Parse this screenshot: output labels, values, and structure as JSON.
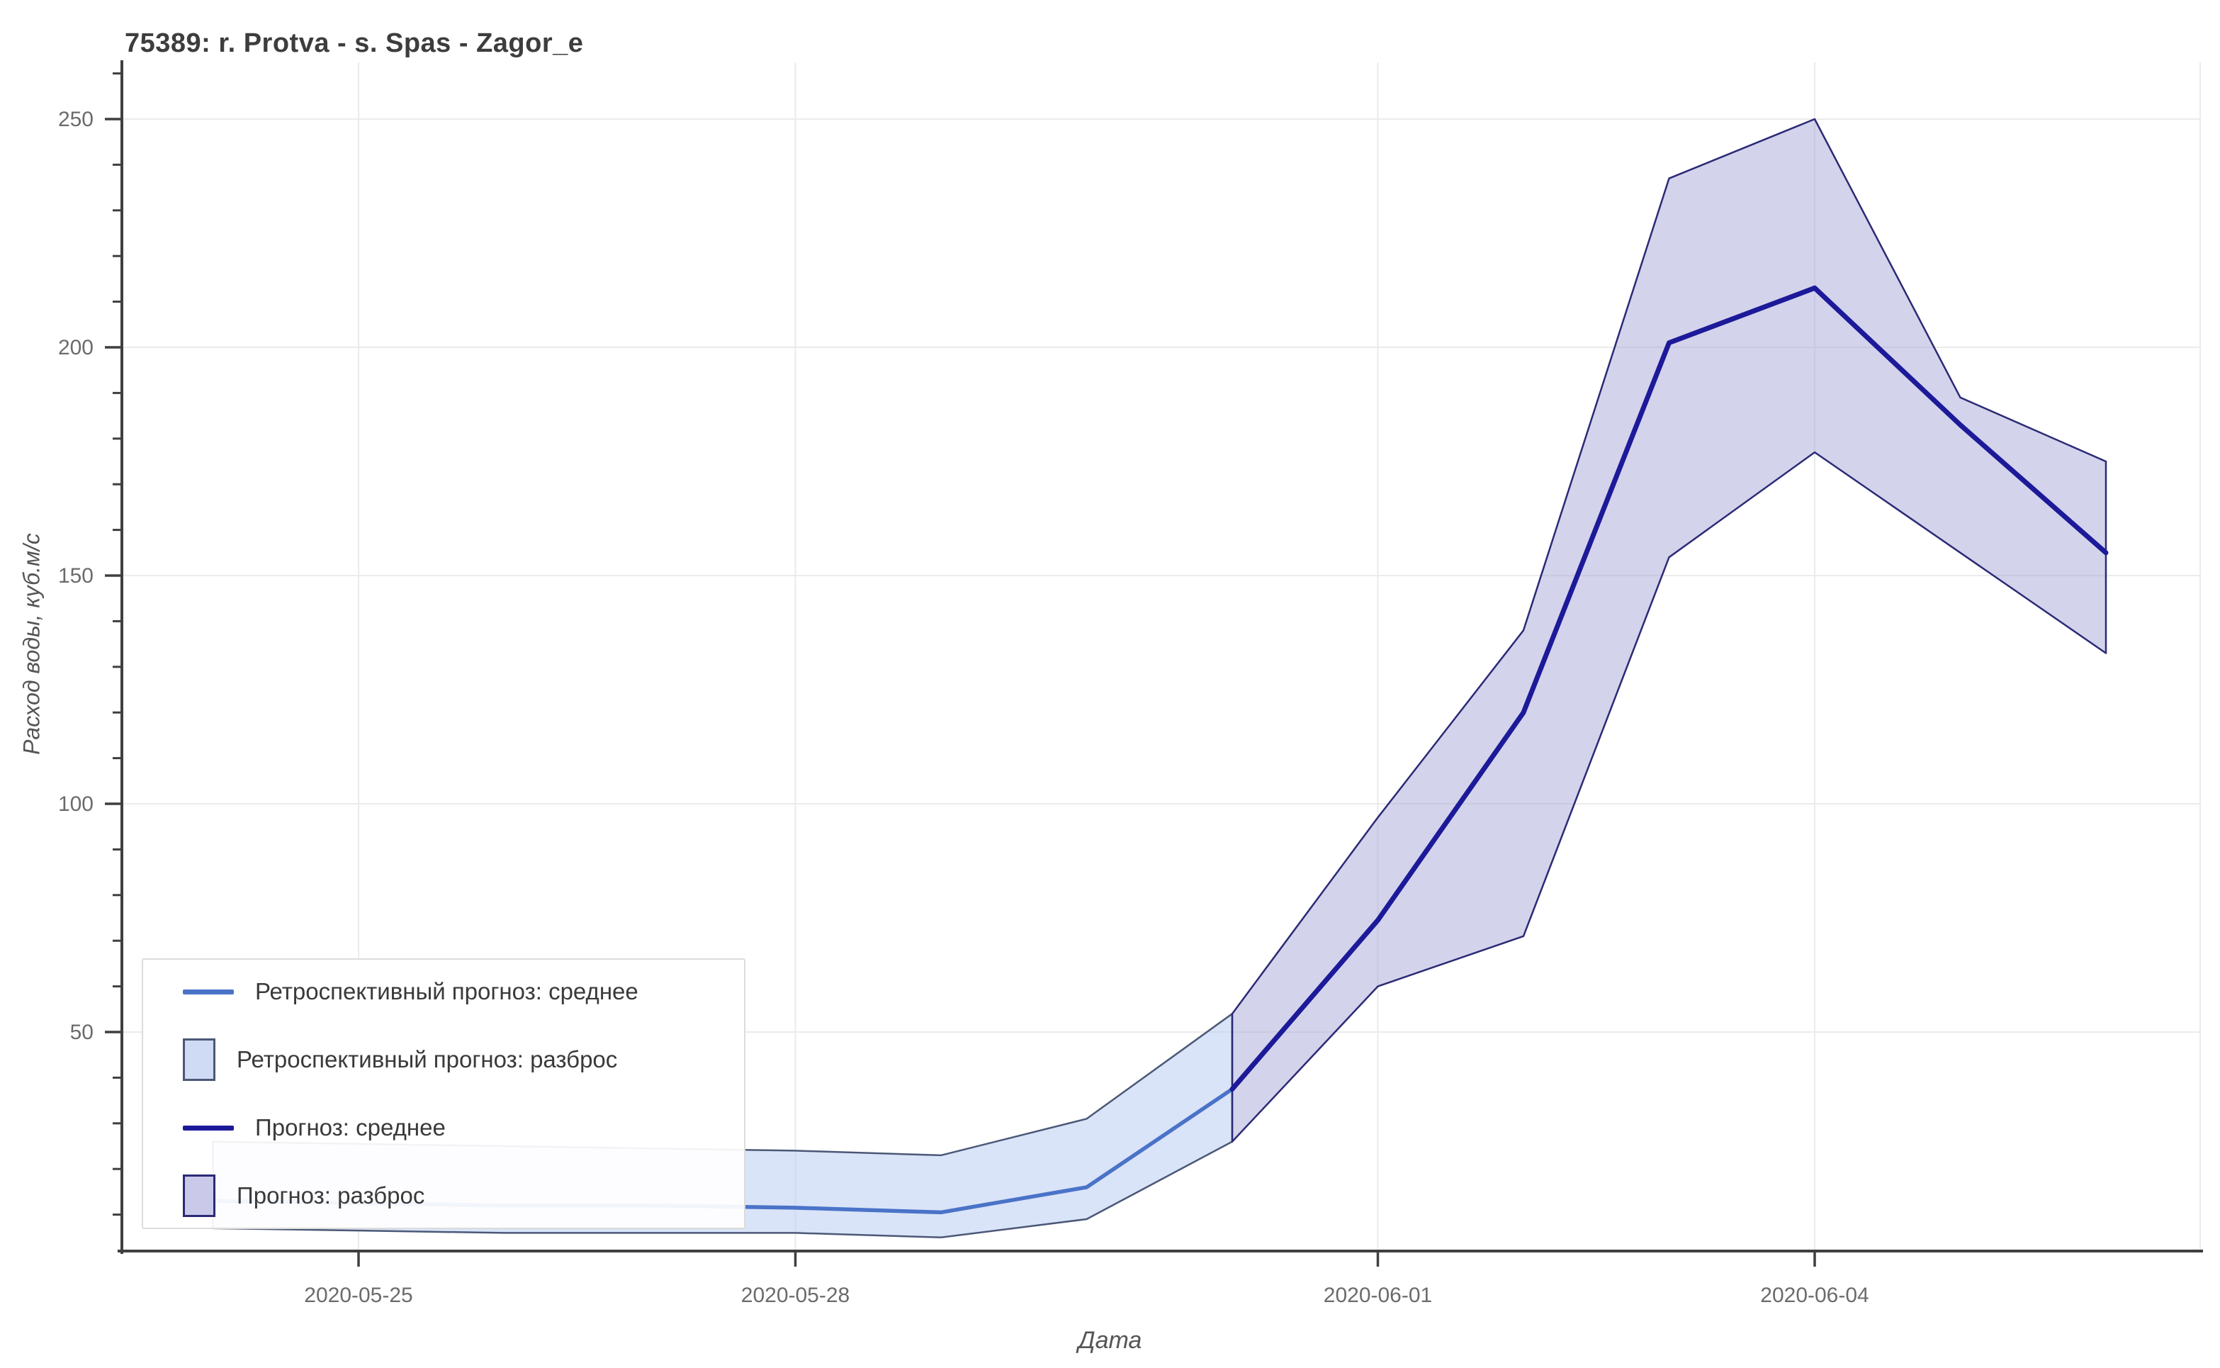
{
  "title": "75389: r. Protva - s. Spas - Zagor_e",
  "legend": {
    "items": [
      {
        "label": "Ретроспективный прогноз: среднее",
        "swatch": "line",
        "color": "#4a73c8"
      },
      {
        "label": "Ретроспективный прогноз: разброс",
        "swatch": "rect",
        "fill": "#cfdbf5",
        "stroke": "#4b5877"
      },
      {
        "label": "Прогноз: среднее",
        "swatch": "line",
        "color": "#1c1a99"
      },
      {
        "label": "Прогноз: разброс",
        "swatch": "rect",
        "fill": "#cac9ea",
        "stroke": "#2b2a75"
      }
    ]
  },
  "colors": {
    "retro_mean": "#4a73c8",
    "retro_fill": "rgba(187,205,242,0.55)",
    "retro_edge": "#4b5877",
    "forecast_mean": "#1c1a99",
    "forecast_fill": "rgba(164,164,216,0.48)",
    "forecast_edge": "#2b2a75",
    "grid": "#ebebeb",
    "spine": "#3f3f3f",
    "tick_label": "#6b6b6b"
  },
  "chart_data": {
    "type": "line",
    "title": "75389: r. Protva - s. Spas - Zagor_e",
    "xlabel": "Дата",
    "ylabel": "Расход воды, куб.м/с",
    "ylim": [
      2,
      262
    ],
    "grid": true,
    "legend_position": "lower left",
    "x_tick_labels": [
      "2020-05-25",
      "2020-05-28",
      "2020-06-01",
      "2020-06-04"
    ],
    "y_ticks_major": [
      50,
      100,
      150,
      200,
      250
    ],
    "y_minor_step": 10,
    "series": [
      {
        "name": "Ретроспективный прогноз: среднее",
        "dates": [
          "2020-05-24",
          "2020-05-25",
          "2020-05-26",
          "2020-05-27",
          "2020-05-28",
          "2020-05-29",
          "2020-05-30",
          "2020-05-31"
        ],
        "mean": [
          13,
          12.5,
          12,
          12,
          11.5,
          10.5,
          16,
          37.5
        ],
        "upper": [
          26,
          25.5,
          25,
          24.5,
          24,
          23,
          31,
          54
        ],
        "lower": [
          7,
          6.5,
          6,
          6,
          6,
          5,
          9,
          26
        ]
      },
      {
        "name": "Прогноз: среднее",
        "dates": [
          "2020-05-31",
          "2020-06-01",
          "2020-06-02",
          "2020-06-03",
          "2020-06-04",
          "2020-06-05",
          "2020-06-06"
        ],
        "mean": [
          37.5,
          74.5,
          120,
          201,
          213,
          183,
          155
        ],
        "upper": [
          54,
          97,
          138,
          237,
          250,
          189,
          175
        ],
        "lower": [
          26,
          60,
          71,
          154,
          177,
          155,
          133
        ]
      }
    ]
  }
}
